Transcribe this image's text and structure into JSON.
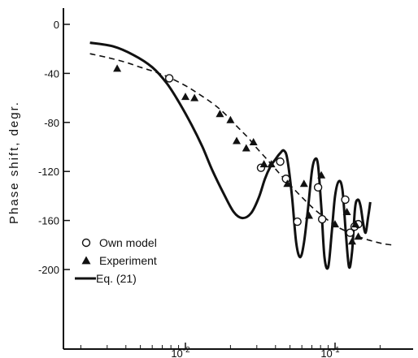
{
  "chart_data": {
    "type": "line",
    "title": "",
    "xlabel": "",
    "ylabel": "Phase shift, degr.",
    "xscale": "log",
    "xlim": [
      0.0015,
      0.3
    ],
    "ylim": [
      -230,
      10
    ],
    "yticks": [
      0,
      -40,
      -80,
      -120,
      -160,
      -200
    ],
    "ytick_labels": [
      "0",
      "-40",
      "-80",
      "-120",
      "-160",
      "-200"
    ],
    "xtick_labels": [
      {
        "x": 0.01,
        "base": "10",
        "exp": "-2"
      },
      {
        "x": 0.1,
        "base": "10",
        "exp": "-1"
      }
    ],
    "grid": false,
    "legend_position": "bottom-left",
    "legend": [
      {
        "label": "Own model",
        "marker": "open-circle"
      },
      {
        "label": "Experiment",
        "marker": "filled-triangle"
      },
      {
        "label": "Eq. (21)",
        "marker": "solid-line"
      }
    ],
    "series": [
      {
        "name": "Eq. (21)",
        "style": "solid",
        "x": [
          0.0023,
          0.0033,
          0.0045,
          0.006,
          0.0075,
          0.009,
          0.011,
          0.013,
          0.015,
          0.018,
          0.021,
          0.024,
          0.0275,
          0.031,
          0.034,
          0.037,
          0.04,
          0.043,
          0.0455,
          0.048,
          0.0515,
          0.055,
          0.0585,
          0.062,
          0.066,
          0.07,
          0.0735,
          0.077,
          0.081,
          0.085,
          0.09,
          0.095,
          0.1,
          0.106,
          0.112,
          0.118,
          0.124,
          0.13,
          0.136,
          0.142,
          0.148,
          0.154,
          0.16,
          0.166,
          0.172
        ],
        "y": [
          -15,
          -18,
          -25,
          -35,
          -48,
          -63,
          -82,
          -100,
          -118,
          -138,
          -153,
          -158,
          -154,
          -141,
          -126,
          -116,
          -110,
          -105,
          -103,
          -110,
          -140,
          -178,
          -190,
          -178,
          -150,
          -120,
          -110,
          -115,
          -150,
          -190,
          -198,
          -170,
          -140,
          -128,
          -135,
          -170,
          -198,
          -185,
          -150,
          -143,
          -148,
          -162,
          -170,
          -158,
          -145
        ]
      },
      {
        "name": "",
        "style": "dashed",
        "x": [
          0.0023,
          0.003,
          0.004,
          0.005,
          0.006,
          0.007,
          0.008,
          0.01,
          0.012,
          0.015,
          0.018,
          0.022,
          0.026,
          0.03,
          0.035,
          0.04,
          0.045,
          0.05,
          0.06,
          0.07,
          0.08,
          0.1,
          0.12,
          0.15,
          0.18,
          0.21,
          0.24
        ],
        "y": [
          -24,
          -27,
          -31,
          -35,
          -38,
          -41,
          -44,
          -50,
          -56,
          -64,
          -72,
          -83,
          -92,
          -101,
          -110,
          -118,
          -125,
          -131,
          -141,
          -149,
          -155,
          -164,
          -169,
          -174,
          -177,
          -179,
          -180
        ]
      },
      {
        "name": "Own model",
        "style": "open-circle",
        "x": [
          0.0078,
          0.032,
          0.043,
          0.047,
          0.056,
          0.077,
          0.082,
          0.117,
          0.126,
          0.135,
          0.143
        ],
        "y": [
          -44,
          -117,
          -112,
          -126,
          -161,
          -133,
          -159,
          -143,
          -170,
          -165,
          -163
        ]
      },
      {
        "name": "Experiment",
        "style": "filled-triangle",
        "x": [
          0.0035,
          0.01,
          0.0115,
          0.017,
          0.02,
          0.022,
          0.0255,
          0.0285,
          0.0335,
          0.0375,
          0.048,
          0.062,
          0.067,
          0.081,
          0.1,
          0.12,
          0.13,
          0.137,
          0.143
        ],
        "y": [
          -36,
          -59,
          -60,
          -73,
          -78,
          -95,
          -101,
          -96,
          -114,
          -114,
          -130,
          -130,
          -156,
          -123,
          -163,
          -153,
          -177,
          -163,
          -173
        ]
      }
    ]
  }
}
